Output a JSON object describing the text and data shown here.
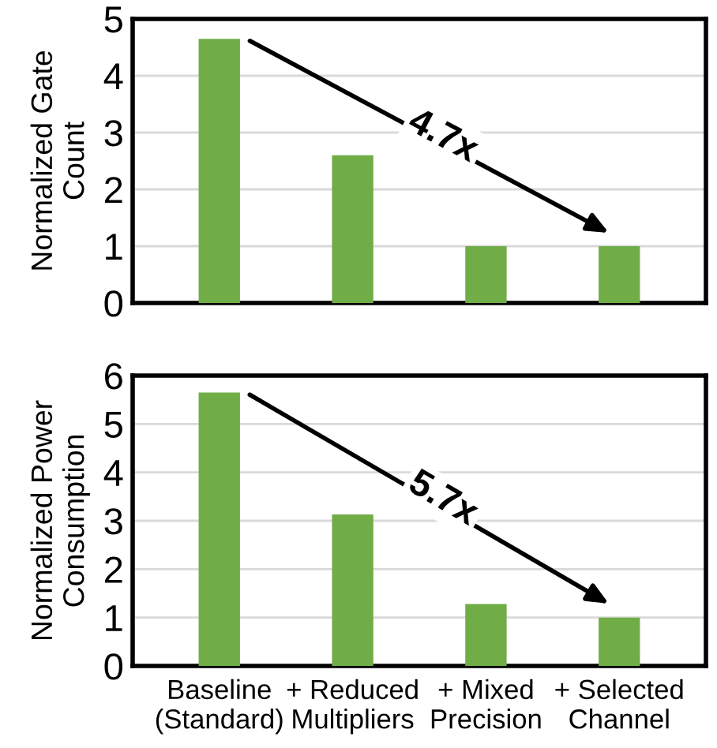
{
  "chart_data": [
    {
      "type": "bar",
      "ylabel": "Normalized Gate\nCount",
      "categories": [
        null,
        null,
        null,
        null
      ],
      "values": [
        4.65,
        2.6,
        1.0,
        1.0
      ],
      "color": "#70ad47",
      "ylim": [
        0,
        5
      ],
      "yticks": [
        0,
        1,
        2,
        3,
        4,
        5
      ],
      "grid": "y",
      "annotations": [
        "4.7x"
      ]
    },
    {
      "type": "bar",
      "ylabel": "Normalized Power\nConsumption",
      "categories": [
        "Baseline\n(Standard)",
        "+ Reduced\nMultipliers",
        "+ Mixed\nPrecision",
        "+ Selected\nChannel"
      ],
      "values": [
        5.65,
        3.13,
        1.28,
        1.0
      ],
      "color": "#70ad47",
      "ylim": [
        0,
        6
      ],
      "yticks": [
        0,
        1,
        2,
        3,
        4,
        5,
        6
      ],
      "grid": "y",
      "annotations": [
        "5.7x"
      ]
    }
  ]
}
